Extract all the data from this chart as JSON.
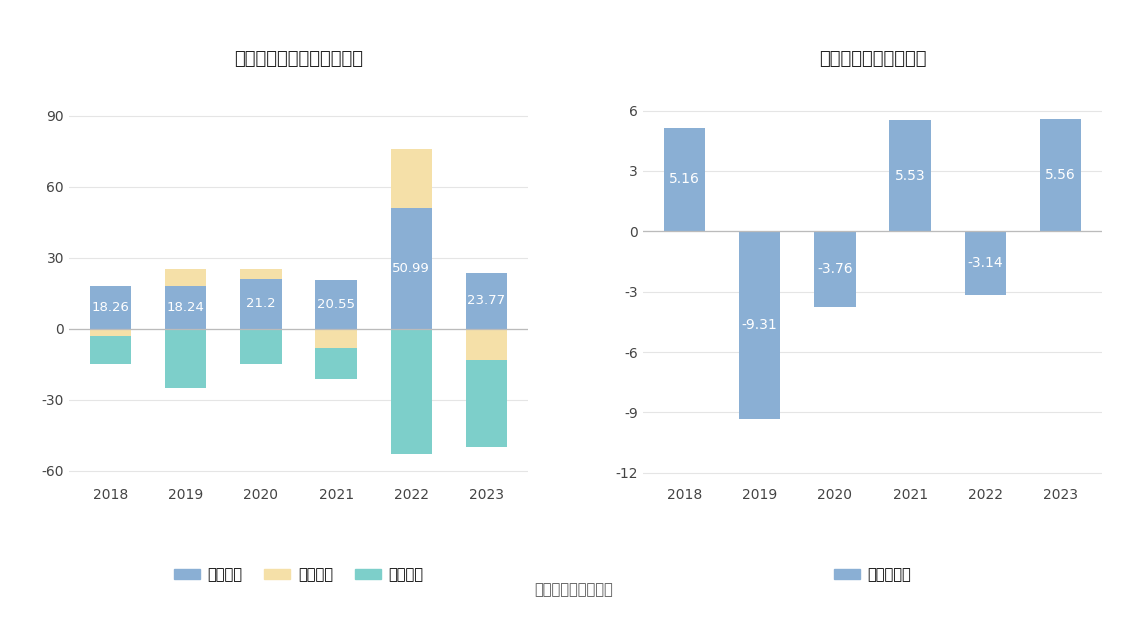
{
  "left_title": "太阳能现金流净额（亿元）",
  "right_title": "自由现金流量（亿元）",
  "years": [
    "2018",
    "2019",
    "2020",
    "2021",
    "2022",
    "2023"
  ],
  "operating": [
    18.26,
    18.24,
    21.2,
    20.55,
    50.99,
    23.77
  ],
  "financing": [
    -3.0,
    7.0,
    4.0,
    -8.0,
    25.0,
    -13.0
  ],
  "investing": [
    -12.0,
    -25.0,
    -15.0,
    -13.0,
    -53.0,
    -37.0
  ],
  "free_cash": [
    5.16,
    -9.31,
    -3.76,
    5.53,
    -3.14,
    5.56
  ],
  "color_operating": "#8aafd4",
  "color_financing": "#f5e0a8",
  "color_investing": "#7dcfca",
  "color_free": "#8aafd4",
  "legend_labels_left": [
    "经营活动",
    "筹资活动",
    "投资活动"
  ],
  "legend_label_right": "自由现金流",
  "left_ylim": [
    -65,
    105
  ],
  "right_ylim": [
    -12.5,
    7.5
  ],
  "left_yticks": [
    -60,
    -30,
    0,
    30,
    60,
    90
  ],
  "right_yticks": [
    -12,
    -9,
    -6,
    -3,
    0,
    3,
    6
  ],
  "source_text": "数据来源：恒生聚源",
  "bg_color": "#ffffff",
  "grid_color": "#e5e5e5",
  "zero_line_color": "#bbbbbb"
}
